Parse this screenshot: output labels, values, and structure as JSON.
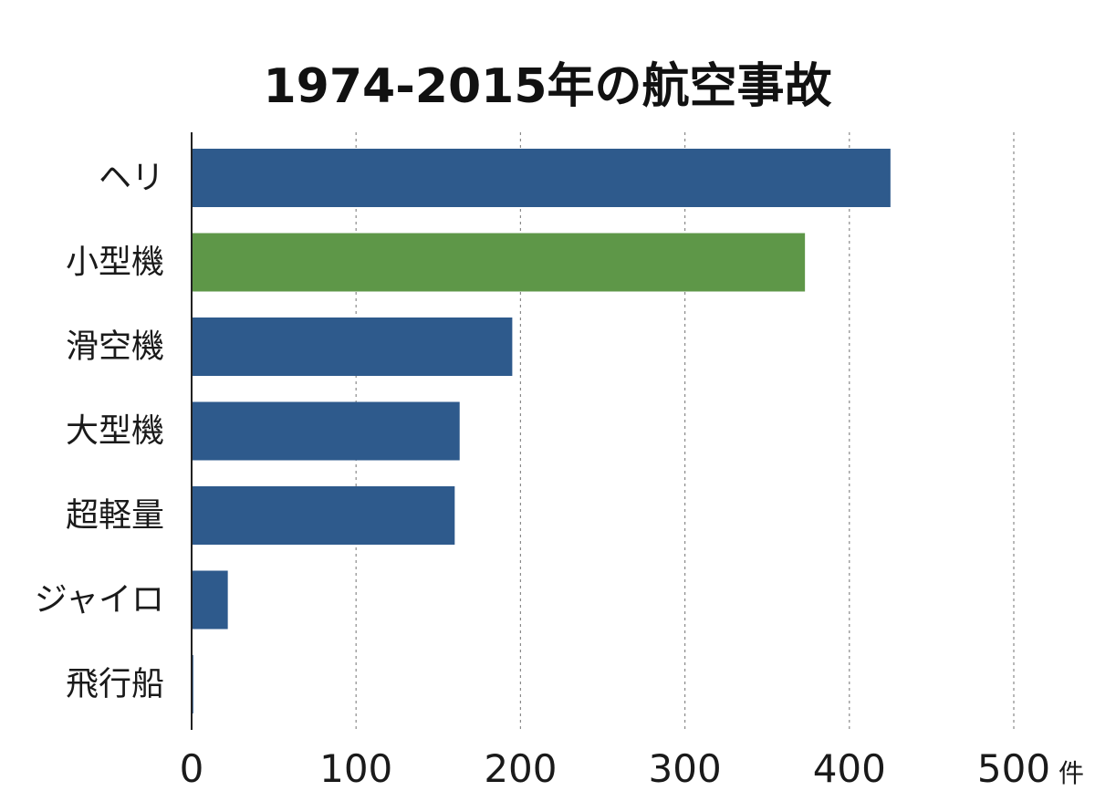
{
  "chart_data": {
    "type": "bar",
    "orientation": "horizontal",
    "title": "1974-2015年の航空事故",
    "categories": [
      "ヘリ",
      "小型機",
      "滑空機",
      "大型機",
      "超軽量",
      "ジャイロ",
      "飛行船"
    ],
    "values": [
      425,
      373,
      195,
      163,
      160,
      22,
      1
    ],
    "highlight_index": 1,
    "xlim": [
      0,
      500
    ],
    "xticks": [
      0,
      100,
      200,
      300,
      400,
      500
    ],
    "xtick_labels": [
      "0",
      "100",
      "200",
      "300",
      "400",
      "500"
    ],
    "unit": "件",
    "xlabel": "",
    "ylabel": "",
    "grid": "vertical dashed",
    "legend": "none",
    "colors": {
      "bar": "#2e5a8c",
      "highlight": "#5e9748",
      "axis": "#222222",
      "grid": "#8a8a8a"
    }
  }
}
